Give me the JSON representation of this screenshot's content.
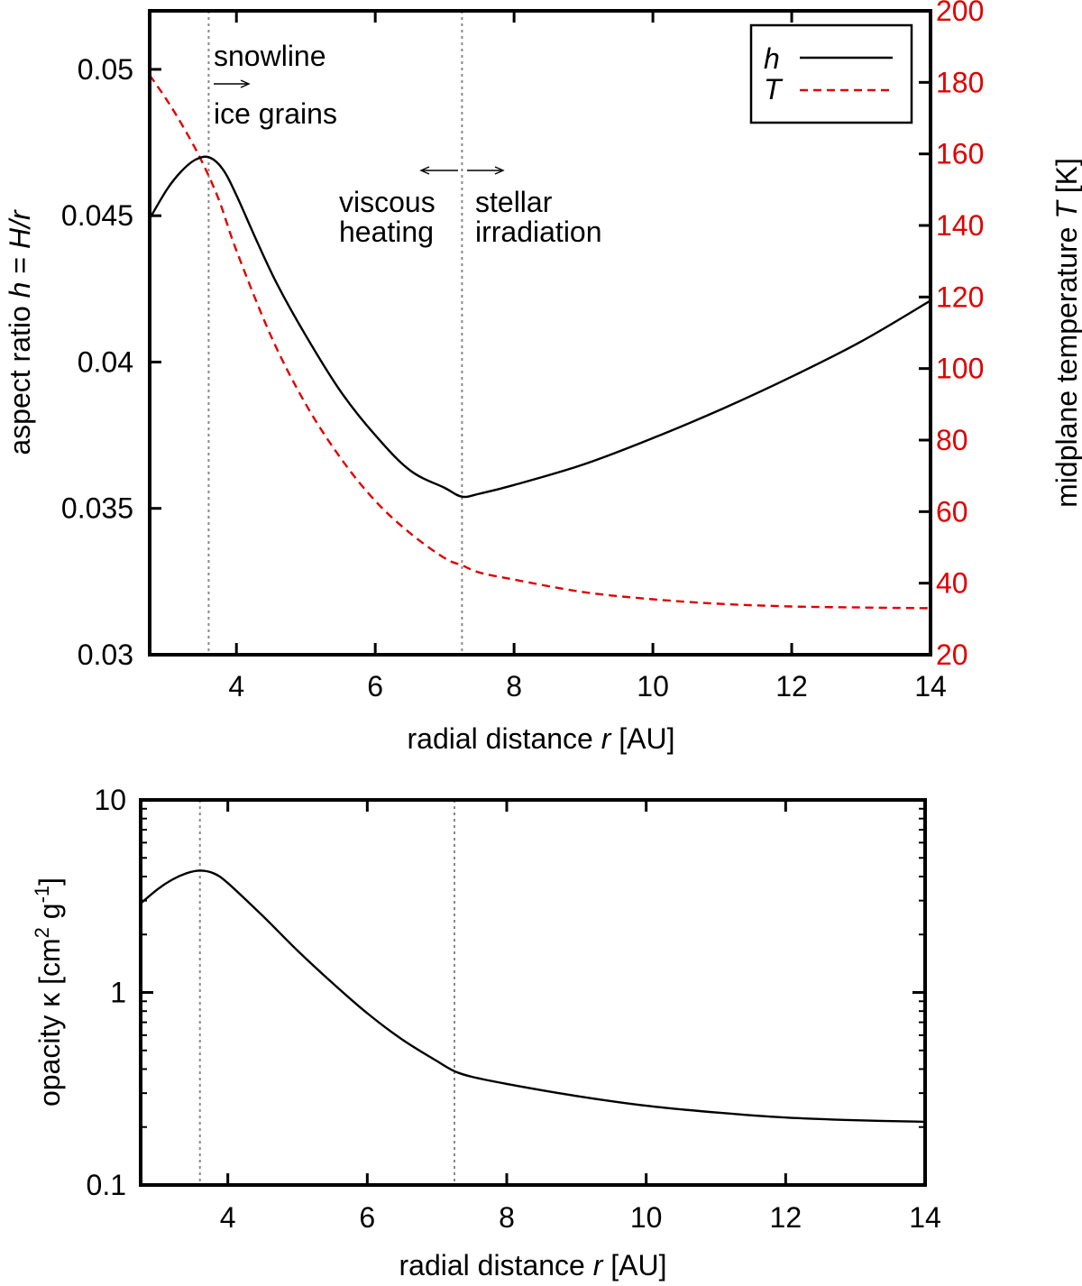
{
  "chart_data": [
    {
      "type": "line",
      "panel": "top",
      "xlabel_parts": [
        "radial distance ",
        "r",
        " [AU]"
      ],
      "ylabel_parts": [
        "aspect ratio ",
        "h",
        " = ",
        "H/r"
      ],
      "y2label_parts": [
        "midplane temperature ",
        "T",
        " [K]"
      ],
      "xlim": [
        2.75,
        14
      ],
      "ylim": [
        0.03,
        0.052
      ],
      "y2lim": [
        20,
        200
      ],
      "xticks": [
        4,
        6,
        8,
        10,
        12,
        14
      ],
      "xtick_labels": [
        "4",
        "6",
        "8",
        "10",
        "12",
        "14"
      ],
      "yticks": [
        0.03,
        0.035,
        0.04,
        0.045,
        0.05
      ],
      "ytick_labels": [
        "0.03",
        "0.035",
        "0.04",
        "0.045",
        "0.05"
      ],
      "y2ticks": [
        20,
        40,
        60,
        80,
        100,
        120,
        140,
        160,
        180,
        200
      ],
      "y2tick_labels": [
        "20",
        "40",
        "60",
        "80",
        "100",
        "120",
        "140",
        "160",
        "180",
        "200"
      ],
      "vlines": [
        3.6,
        7.25
      ],
      "legend_position": "top-right",
      "legend": [
        {
          "label": "h",
          "style": "solid",
          "color": "#000000"
        },
        {
          "label": "T",
          "style": "dashed",
          "color": "#e00000"
        }
      ],
      "annotations": {
        "snowline": "snowline",
        "ice_grains": "ice grains",
        "viscous1": "viscous",
        "viscous2": "heating",
        "stellar1": "stellar",
        "stellar2": "irradiation"
      },
      "series": [
        {
          "name": "h",
          "axis": "left",
          "x": [
            2.75,
            3.0,
            3.2,
            3.4,
            3.6,
            3.8,
            4.0,
            4.3,
            4.6,
            5.0,
            5.5,
            6.0,
            6.5,
            7.0,
            7.25,
            7.5,
            8.0,
            9.0,
            10.0,
            11.0,
            12.0,
            13.0,
            14.0
          ],
          "y": [
            0.0449,
            0.0459,
            0.0465,
            0.0469,
            0.047,
            0.0466,
            0.0457,
            0.0441,
            0.0426,
            0.0409,
            0.039,
            0.0375,
            0.0363,
            0.0357,
            0.0354,
            0.0355,
            0.0358,
            0.0365,
            0.0374,
            0.0384,
            0.0395,
            0.0407,
            0.0421
          ]
        },
        {
          "name": "T",
          "axis": "right",
          "x": [
            2.75,
            3.0,
            3.25,
            3.5,
            3.75,
            4.0,
            4.5,
            5.0,
            5.5,
            6.0,
            6.5,
            7.0,
            7.25,
            7.5,
            8.0,
            9.0,
            10.0,
            11.0,
            12.0,
            13.0,
            14.0
          ],
          "y": [
            182,
            175,
            167,
            158,
            147,
            133,
            109,
            90,
            75,
            63,
            54,
            47,
            45,
            43,
            41,
            37.5,
            35.5,
            34.2,
            33.5,
            33.2,
            33.0
          ]
        }
      ]
    },
    {
      "type": "line",
      "panel": "bottom",
      "xlabel_parts": [
        "radial distance ",
        "r",
        " [AU]"
      ],
      "ylabel": "opacity κ [cm² g⁻¹]",
      "ylabel_parts": [
        "opacity κ [cm",
        "2",
        " g",
        "-1",
        "]"
      ],
      "xlim": [
        2.75,
        14
      ],
      "ylim": [
        0.1,
        10
      ],
      "yscale": "log",
      "xticks": [
        4,
        6,
        8,
        10,
        12,
        14
      ],
      "xtick_labels": [
        "4",
        "6",
        "8",
        "10",
        "12",
        "14"
      ],
      "yticks": [
        0.1,
        1,
        10
      ],
      "ytick_labels": [
        "0.1",
        "1",
        "10"
      ],
      "vlines": [
        3.6,
        7.25
      ],
      "series": [
        {
          "name": "kappa",
          "x": [
            2.75,
            3.0,
            3.2,
            3.4,
            3.6,
            3.8,
            4.0,
            4.5,
            5.0,
            5.5,
            6.0,
            6.5,
            7.0,
            7.25,
            7.5,
            8.0,
            9.0,
            10.0,
            11.0,
            12.0,
            13.0,
            14.0
          ],
          "y": [
            2.9,
            3.45,
            3.85,
            4.15,
            4.3,
            4.15,
            3.7,
            2.5,
            1.65,
            1.12,
            0.78,
            0.57,
            0.44,
            0.39,
            0.365,
            0.335,
            0.29,
            0.258,
            0.238,
            0.224,
            0.217,
            0.213
          ]
        }
      ]
    }
  ]
}
